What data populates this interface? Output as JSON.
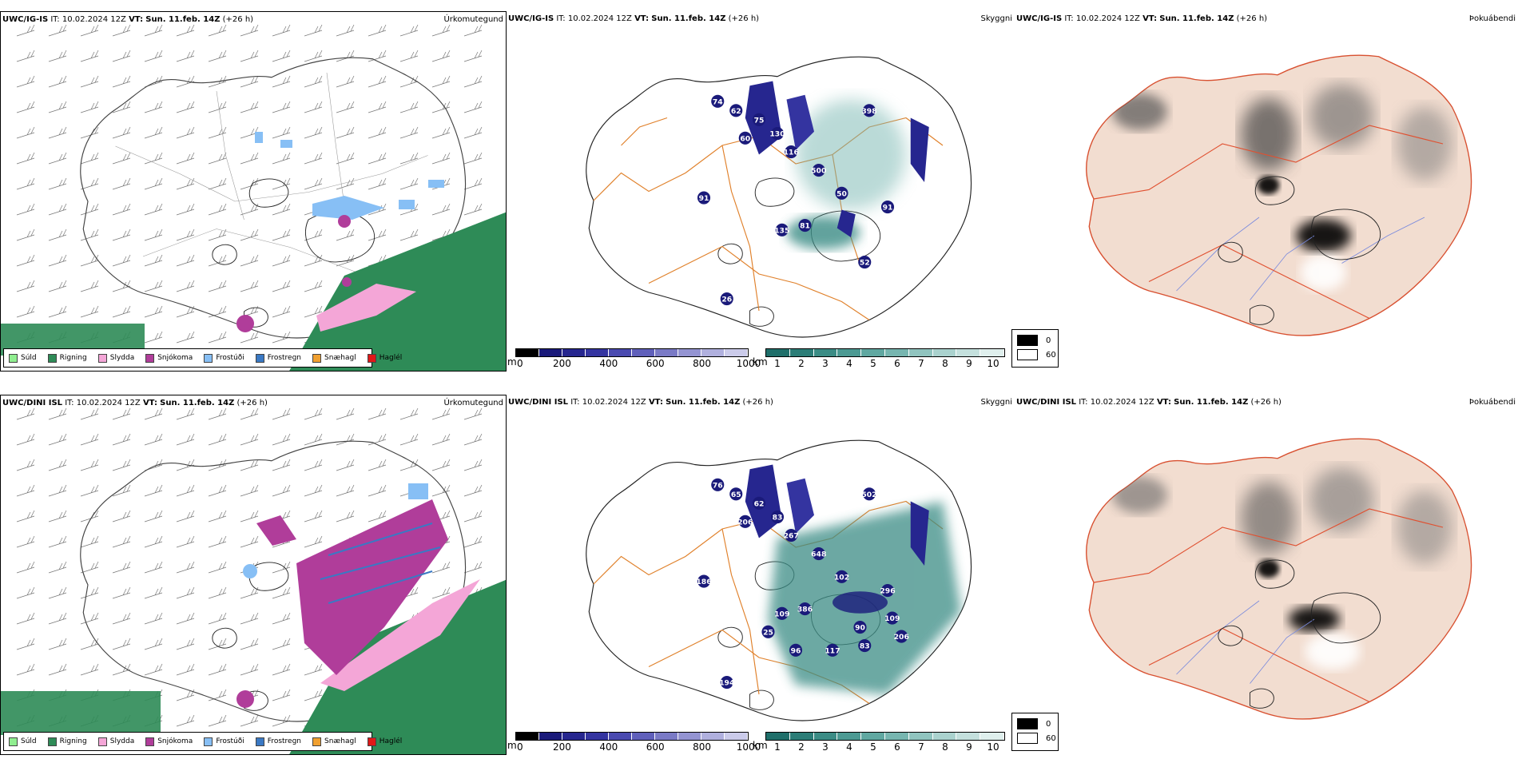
{
  "rows": [
    {
      "model": "UWC/IG-IS",
      "it_label": "IT:",
      "it_value": "10.02.2024 12Z",
      "vt_label": "VT:",
      "vt_value": "Sun. 11.feb. 14Z",
      "lead": "(+26 h)",
      "visibility_labels": [
        "74",
        "62",
        "75",
        "130",
        "60",
        "116",
        "398",
        "500",
        "91",
        "50",
        "135",
        "81",
        "91",
        "26",
        "52"
      ]
    },
    {
      "model": "UWC/DINI ISL",
      "it_label": "IT:",
      "it_value": "10.02.2024 12Z",
      "vt_label": "VT:",
      "vt_value": "Sun. 11.feb. 14Z",
      "lead": "(+26 h)",
      "visibility_labels": [
        "76",
        "65",
        "62",
        "83",
        "206",
        "267",
        "502",
        "648",
        "186",
        "102",
        "109",
        "386",
        "296",
        "194",
        "83",
        "109",
        "206",
        "90",
        "117",
        "96",
        "25"
      ]
    }
  ],
  "panel_titles": {
    "precip": "Úrkomutegund",
    "visibility": "Skyggni",
    "fog": "Þokuábendi"
  },
  "precip_legend": [
    {
      "label": "Súld",
      "color": "#90ee90"
    },
    {
      "label": "Rigning",
      "color": "#2e8b57"
    },
    {
      "label": "Slydda",
      "color": "#f4a6d7"
    },
    {
      "label": "Snjókoma",
      "color": "#b03d9a"
    },
    {
      "label": "Frostúði",
      "color": "#87bff5"
    },
    {
      "label": "Frostregn",
      "color": "#3a79c4"
    },
    {
      "label": "Snæhagl",
      "color": "#f0a030"
    },
    {
      "label": "Haglél",
      "color": "#e01818"
    }
  ],
  "colorbar_m": {
    "unit": "m",
    "ticks": [
      "0",
      "200",
      "400",
      "600",
      "800",
      "1000"
    ],
    "colors": [
      "#000000",
      "#1a1a7a",
      "#26268f",
      "#3434a0",
      "#4a4ab0",
      "#6060bb",
      "#7a7ac6",
      "#9494d2",
      "#b0b0de",
      "#cbcbea"
    ]
  },
  "colorbar_km": {
    "unit": "km",
    "ticks": [
      "1",
      "2",
      "3",
      "4",
      "5",
      "6",
      "7",
      "8",
      "9",
      "10"
    ],
    "colors": [
      "#1f6f6a",
      "#2b7d77",
      "#3b8c85",
      "#4c9a93",
      "#60a8a1",
      "#77b6b0",
      "#90c4bf",
      "#aad2ce",
      "#c4e0dd",
      "#dfefed"
    ]
  },
  "fog_legend": [
    {
      "label": "0",
      "color": "#000000"
    },
    {
      "label": "60",
      "color": "#ffffff"
    }
  ]
}
